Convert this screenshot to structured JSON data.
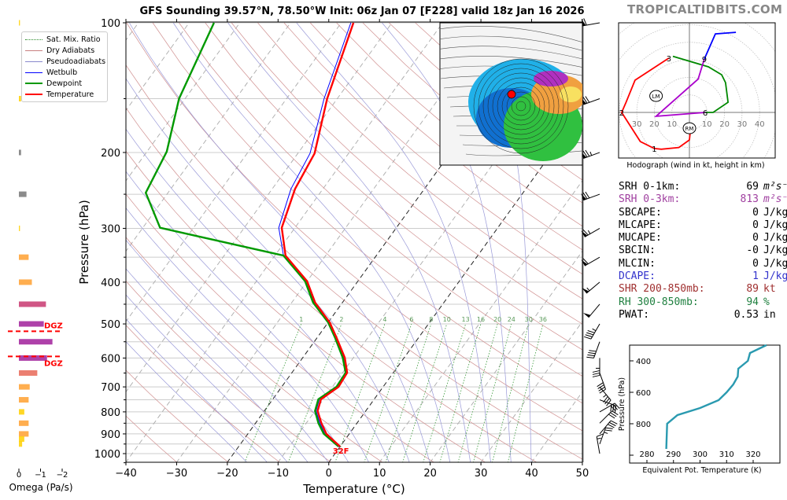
{
  "brand": "TROPICALTIDBITS.COM",
  "title": "GFS Sounding 39.57°N, 78.50°W Init: 06z Jan 07 [F228] valid 18z Jan 16 2026",
  "legend": [
    {
      "label": "Sat. Mix. Ratio",
      "color": "#2e8b2e",
      "style": "dotted"
    },
    {
      "label": "Dry Adiabats",
      "color": "#c98080",
      "style": "solid"
    },
    {
      "label": "Pseudoadiabats",
      "color": "#8888cc",
      "style": "solid"
    },
    {
      "label": "Wetbulb",
      "color": "#0000ff",
      "style": "solid"
    },
    {
      "label": "Dewpoint",
      "color": "#009900",
      "style": "thick"
    },
    {
      "label": "Temperature",
      "color": "#ff0000",
      "style": "thick"
    }
  ],
  "stats": [
    {
      "label": "SRH 0-1km:",
      "value": "69",
      "unit": "m²s⁻²",
      "color": "#000000"
    },
    {
      "label": "SRH 0-3km:",
      "value": "813",
      "unit": "m²s⁻²",
      "color": "#a040a0"
    },
    {
      "label": "SBCAPE:",
      "value": "0",
      "unit": "J/kg",
      "color": "#000000"
    },
    {
      "label": "MLCAPE:",
      "value": "0",
      "unit": "J/kg",
      "color": "#000000"
    },
    {
      "label": "MUCAPE:",
      "value": "0",
      "unit": "J/kg",
      "color": "#000000"
    },
    {
      "label": "SBCIN:",
      "value": "-0",
      "unit": "J/kg",
      "color": "#000000"
    },
    {
      "label": "MLCIN:",
      "value": "0",
      "unit": "J/kg",
      "color": "#000000"
    },
    {
      "label": "DCAPE:",
      "value": "1",
      "unit": "J/kg",
      "color": "#3333cc"
    },
    {
      "label": "SHR 200-850mb:",
      "value": "89",
      "unit": "kt",
      "color": "#a03030"
    },
    {
      "label": "RH 300-850mb:",
      "value": "94",
      "unit": "%",
      "color": "#208040"
    },
    {
      "label": "PWAT:",
      "value": "0.53",
      "unit": "in",
      "color": "#000000"
    }
  ],
  "chart_data": [
    {
      "type": "line",
      "name": "skewt",
      "xlabel": "Temperature (°C)",
      "ylabel": "Pressure (hPa)",
      "xlim": [
        -40,
        50
      ],
      "ylim": [
        1050,
        100
      ],
      "yscale": "log",
      "xticks": [
        -40,
        -30,
        -20,
        -10,
        0,
        10,
        20,
        30,
        40,
        50
      ],
      "yticks": [
        100,
        200,
        300,
        400,
        500,
        600,
        700,
        800,
        900,
        1000
      ],
      "mixing_ratio_labels": [
        "1",
        "2",
        "4",
        "6",
        "8",
        "10",
        "13",
        "16",
        "20",
        "24",
        "30",
        "36"
      ],
      "freezing_label": "32F",
      "series": [
        {
          "name": "Temperature",
          "color": "#ff0000",
          "points": [
            [
              963,
              0.0
            ],
            [
              900,
              -4.5
            ],
            [
              850,
              -7.0
            ],
            [
              796,
              -9.5
            ],
            [
              748,
              -10.5
            ],
            [
              700,
              -8.8
            ],
            [
              649,
              -9.1
            ],
            [
              599,
              -11.7
            ],
            [
              539,
              -16.1
            ],
            [
              496,
              -19.7
            ],
            [
              446,
              -25.4
            ],
            [
              398,
              -30.0
            ],
            [
              347,
              -37.9
            ],
            [
              299,
              -42.6
            ],
            [
              243,
              -45.5
            ],
            [
              201,
              -46.7
            ],
            [
              150,
              -52.0
            ],
            [
              100,
              -57.6
            ]
          ]
        },
        {
          "name": "Dewpoint",
          "color": "#009900",
          "points": [
            [
              963,
              -0.3
            ],
            [
              900,
              -5.0
            ],
            [
              850,
              -7.6
            ],
            [
              796,
              -10.0
            ],
            [
              748,
              -11.0
            ],
            [
              700,
              -9.2
            ],
            [
              649,
              -9.4
            ],
            [
              599,
              -12.1
            ],
            [
              539,
              -16.4
            ],
            [
              496,
              -20.0
            ],
            [
              446,
              -25.8
            ],
            [
              398,
              -30.4
            ],
            [
              347,
              -38.3
            ],
            [
              299,
              -66.6
            ],
            [
              248,
              -74.4
            ],
            [
              199,
              -76.1
            ],
            [
              150,
              -81.2
            ],
            [
              100,
              -85.1
            ]
          ]
        },
        {
          "name": "Wetbulb",
          "color": "#0000ff",
          "points": [
            [
              963,
              -0.2
            ],
            [
              900,
              -4.8
            ],
            [
              850,
              -7.3
            ],
            [
              796,
              -9.8
            ],
            [
              748,
              -10.8
            ],
            [
              700,
              -9.0
            ],
            [
              649,
              -9.3
            ],
            [
              599,
              -11.9
            ],
            [
              539,
              -16.3
            ],
            [
              496,
              -19.9
            ],
            [
              446,
              -25.6
            ],
            [
              398,
              -30.3
            ],
            [
              347,
              -38.3
            ],
            [
              299,
              -43.2
            ],
            [
              243,
              -46.3
            ],
            [
              201,
              -47.6
            ],
            [
              150,
              -52.6
            ],
            [
              100,
              -58.1
            ]
          ]
        }
      ],
      "wind_barbs": [
        [
          1000,
          350,
          15
        ],
        [
          950,
          20,
          25
        ],
        [
          900,
          40,
          30
        ],
        [
          850,
          45,
          30
        ],
        [
          800,
          60,
          30
        ],
        [
          750,
          110,
          30
        ],
        [
          700,
          140,
          35
        ],
        [
          650,
          160,
          40
        ],
        [
          600,
          180,
          35
        ],
        [
          550,
          200,
          40
        ],
        [
          500,
          210,
          45
        ],
        [
          450,
          220,
          50
        ],
        [
          400,
          230,
          55
        ],
        [
          350,
          240,
          60
        ],
        [
          300,
          240,
          65
        ],
        [
          250,
          250,
          70
        ],
        [
          200,
          250,
          75
        ],
        [
          150,
          250,
          70
        ],
        [
          100,
          260,
          60
        ]
      ]
    },
    {
      "type": "bar",
      "name": "omega",
      "xlabel": "Omega (Pa/s)",
      "xlim": [
        0,
        -2
      ],
      "xticks": [
        "0",
        "−1",
        "−2"
      ],
      "dgz_label": "DGZ",
      "dgz_bounds": [
        520,
        595
      ],
      "levels": [
        100,
        150,
        200,
        250,
        300,
        350,
        400,
        450,
        500,
        550,
        600,
        650,
        700,
        750,
        800,
        850,
        900,
        925,
        950
      ],
      "values": [
        -0.05,
        -0.1,
        -0.1,
        -0.35,
        -0.05,
        -0.45,
        -0.6,
        -1.25,
        -1.15,
        -1.55,
        -1.3,
        -0.85,
        -0.5,
        -0.45,
        -0.25,
        -0.45,
        -0.45,
        -0.25,
        -0.15
      ],
      "colors": [
        "#ffd000",
        "#ffd000",
        "#777777",
        "#777777",
        "#ffd000",
        "#ffa030",
        "#ffa030",
        "#c83870",
        "#a0209a",
        "#a0209a",
        "#a0209a",
        "#e86858",
        "#ffa030",
        "#ffa030",
        "#ffd000",
        "#ffa030",
        "#ffa030",
        "#ffd000",
        "#ffd000"
      ]
    },
    {
      "type": "line",
      "name": "hodograph",
      "caption": "Hodograph (wind in kt, height in km)",
      "ring_labels": [
        "30",
        "20",
        "10",
        "10",
        "20",
        "30",
        "40"
      ],
      "segments": [
        {
          "color": "#ff0000",
          "points": [
            [
              0.5,
              -11
            ],
            [
              0,
              -15.7
            ],
            [
              -6,
              -20
            ],
            [
              -16,
              -21
            ],
            [
              -20,
              -20.6
            ],
            [
              -28,
              -16.6
            ],
            [
              -38.6,
              0
            ],
            [
              -36,
              6
            ],
            [
              -31,
              18.4
            ],
            [
              -11.7,
              31
            ]
          ]
        },
        {
          "color": "#008800",
          "points": [
            [
              -9.4,
              32
            ],
            [
              10.8,
              26
            ],
            [
              18.4,
              21.5
            ],
            [
              20.6,
              17
            ],
            [
              22,
              5.8
            ],
            [
              13.5,
              0
            ],
            [
              9,
              0
            ]
          ]
        },
        {
          "color": "#aa00cc",
          "points": [
            [
              9,
              0
            ],
            [
              -19,
              -2.2
            ],
            [
              5,
              19
            ],
            [
              8.5,
              30.5
            ]
          ]
        },
        {
          "color": "#0000ff",
          "points": [
            [
              8.5,
              30.5
            ],
            [
              14.8,
              44.8
            ],
            [
              26.5,
              45.7
            ]
          ]
        }
      ],
      "height_labels": [
        {
          "text": "1",
          "u": -20,
          "v": -20.6
        },
        {
          "text": "2",
          "u": -38.6,
          "v": 0
        },
        {
          "text": "3",
          "u": -11.7,
          "v": 31
        },
        {
          "text": "6",
          "u": 9,
          "v": 0
        },
        {
          "text": "9",
          "u": 8.5,
          "v": 30.5
        }
      ],
      "storm_motion": [
        {
          "text": "LM",
          "u": -19,
          "v": 9.4
        },
        {
          "text": "RM",
          "u": 0,
          "v": -9
        }
      ]
    },
    {
      "type": "line",
      "name": "theta-e",
      "xlabel": "Equivalent Pot. Temperature (K)",
      "ylabel": "Pressure (hPa)",
      "xlim": [
        276,
        331
      ],
      "ylim": [
        1050,
        300
      ],
      "xticks": [
        280,
        290,
        300,
        310,
        320
      ],
      "yticks": [
        400,
        600,
        800
      ],
      "color": "#2a9ab0",
      "points": [
        [
          960,
          287.3
        ],
        [
          800,
          287.6
        ],
        [
          745,
          291.5
        ],
        [
          700,
          300
        ],
        [
          650,
          307
        ],
        [
          600,
          310
        ],
        [
          550,
          312.5
        ],
        [
          500,
          314.2
        ],
        [
          450,
          314.4
        ],
        [
          400,
          318
        ],
        [
          350,
          318.8
        ],
        [
          300,
          325
        ]
      ]
    }
  ]
}
